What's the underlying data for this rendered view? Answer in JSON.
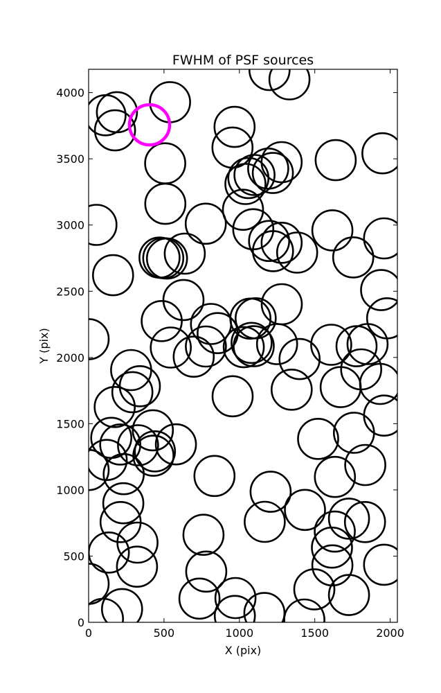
{
  "chart_data": {
    "type": "scatter",
    "title": "FWHM of PSF sources",
    "xlabel": "X (pix)",
    "ylabel": "Y (pix)",
    "xlim": [
      0,
      2048
    ],
    "ylim": [
      0,
      4176
    ],
    "xticks": [
      "0",
      "500",
      "1000",
      "1500",
      "2000"
    ],
    "yticks": [
      "0",
      "500",
      "1000",
      "1500",
      "2000",
      "2500",
      "3000",
      "3500",
      "4000"
    ],
    "grid": false,
    "marker": "circle-outline",
    "radius": 133,
    "colors": {
      "default": "#000000",
      "highlight": "#ff00ff"
    },
    "highlight": {
      "x": 404,
      "y": 3757
    },
    "points": [
      [
        52,
        3001
      ],
      [
        112,
        3829
      ],
      [
        175,
        3715
      ],
      [
        188,
        3852
      ],
      [
        540,
        3928
      ],
      [
        1200,
        4170
      ],
      [
        1332,
        4100
      ],
      [
        968,
        3741
      ],
      [
        954,
        3585
      ],
      [
        1060,
        3355
      ],
      [
        1100,
        3378
      ],
      [
        1040,
        3310
      ],
      [
        1191,
        3426
      ],
      [
        1222,
        3393
      ],
      [
        1280,
        3475
      ],
      [
        1639,
        3490
      ],
      [
        1949,
        3542
      ],
      [
        508,
        3466
      ],
      [
        509,
        3160
      ],
      [
        777,
        3010
      ],
      [
        1024,
        3115
      ],
      [
        1092,
        2968
      ],
      [
        1197,
        2880
      ],
      [
        1223,
        2803
      ],
      [
        1280,
        2866
      ],
      [
        1383,
        2792
      ],
      [
        1617,
        2960
      ],
      [
        1755,
        2756
      ],
      [
        1960,
        2899
      ],
      [
        162,
        2621
      ],
      [
        495,
        2750
      ],
      [
        520,
        2747
      ],
      [
        470,
        2754
      ],
      [
        638,
        2784
      ],
      [
        0,
        2138
      ],
      [
        485,
        2275
      ],
      [
        629,
        2434
      ],
      [
        812,
        2253
      ],
      [
        856,
        2184
      ],
      [
        1073,
        2293
      ],
      [
        1108,
        2296
      ],
      [
        1281,
        2402
      ],
      [
        1940,
        2509
      ],
      [
        1980,
        2296
      ],
      [
        1029,
        2078
      ],
      [
        1081,
        2110
      ],
      [
        1095,
        2085
      ],
      [
        1250,
        2101
      ],
      [
        1399,
        1988
      ],
      [
        1609,
        2096
      ],
      [
        1777,
        2085
      ],
      [
        1850,
        2101
      ],
      [
        545,
        2075
      ],
      [
        778,
        2083
      ],
      [
        697,
        2006
      ],
      [
        282,
        1905
      ],
      [
        340,
        1783
      ],
      [
        290,
        1738
      ],
      [
        173,
        1626
      ],
      [
        955,
        1707
      ],
      [
        1347,
        1757
      ],
      [
        1672,
        1776
      ],
      [
        1808,
        1910
      ],
      [
        1933,
        1800
      ],
      [
        1960,
        1561
      ],
      [
        150,
        1393
      ],
      [
        210,
        1343
      ],
      [
        328,
        1337
      ],
      [
        426,
        1450
      ],
      [
        440,
        1291
      ],
      [
        430,
        1258
      ],
      [
        579,
        1344
      ],
      [
        120,
        1226
      ],
      [
        0,
        1150
      ],
      [
        233,
        1119
      ],
      [
        835,
        1105
      ],
      [
        1522,
        1385
      ],
      [
        1760,
        1431
      ],
      [
        1835,
        1188
      ],
      [
        1634,
        1098
      ],
      [
        230,
        899
      ],
      [
        212,
        757
      ],
      [
        324,
        602
      ],
      [
        134,
        527
      ],
      [
        321,
        420
      ],
      [
        762,
        661
      ],
      [
        780,
        383
      ],
      [
        1207,
        986
      ],
      [
        1168,
        759
      ],
      [
        1435,
        849
      ],
      [
        1633,
        685
      ],
      [
        1727,
        783
      ],
      [
        1833,
        757
      ],
      [
        1614,
        564
      ],
      [
        1617,
        430
      ],
      [
        1960,
        435
      ],
      [
        0,
        291
      ],
      [
        222,
        100
      ],
      [
        95,
        26
      ],
      [
        735,
        179
      ],
      [
        974,
        183
      ],
      [
        970,
        48
      ],
      [
        1166,
        70
      ],
      [
        1497,
        249
      ],
      [
        1431,
        21
      ],
      [
        1727,
        206
      ]
    ]
  }
}
